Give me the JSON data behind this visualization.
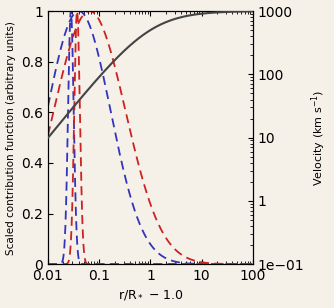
{
  "xlim": [
    0.01,
    100
  ],
  "ylim_left": [
    0,
    1
  ],
  "ylim_right": [
    0.1,
    1000
  ],
  "xlabel": "r/R$_*$ $-$ 1.0",
  "ylabel_left": "Scaled contribution function (arbitrary units)",
  "ylabel_right": "Velocity (km s$^{-1}$)",
  "velocity_color": "#444444",
  "blue_color": "#3333bb",
  "red_color": "#cc2222",
  "bg_color": "#f5f0e8",
  "blue_narrow_mu": 0.028,
  "blue_narrow_sigma": 0.055,
  "blue_wide_mu": 0.04,
  "blue_wide_sigma": 0.62,
  "red_narrow_mu": 0.037,
  "red_narrow_sigma": 0.055,
  "red_wide_mu": 0.065,
  "red_wide_sigma": 0.7,
  "v_inf": 1000,
  "beta": 1.0
}
